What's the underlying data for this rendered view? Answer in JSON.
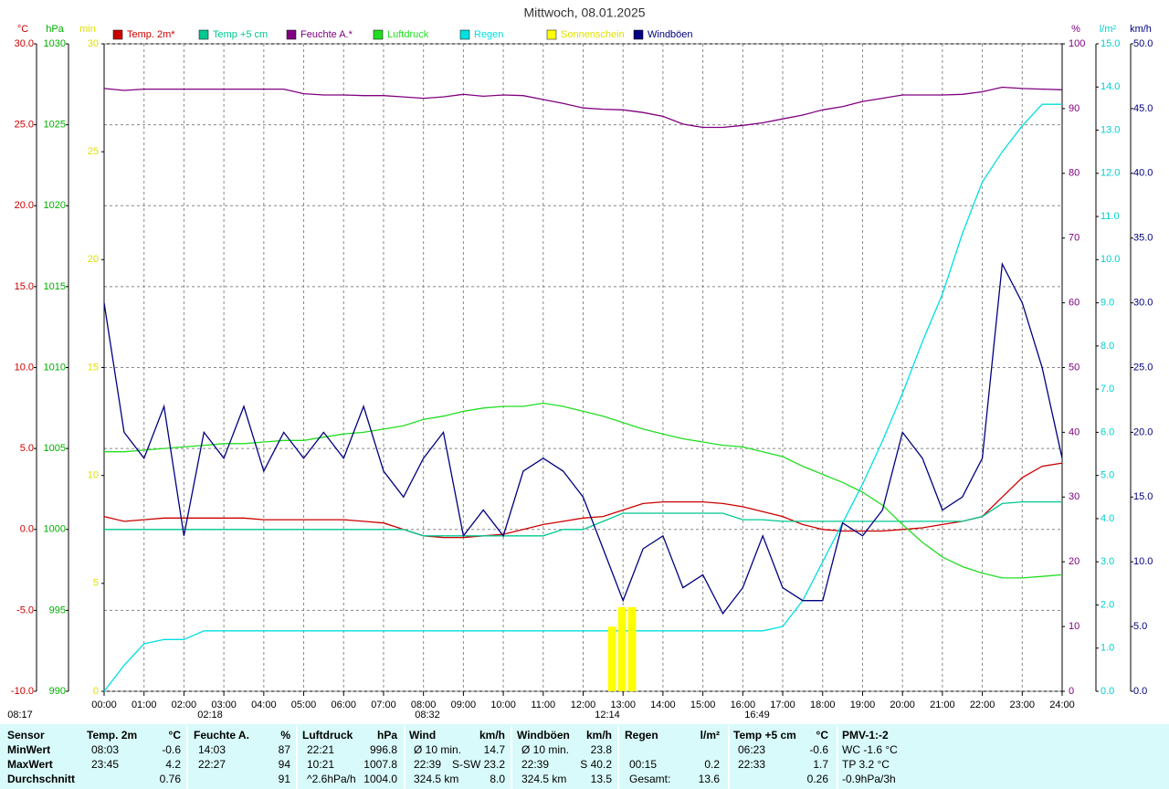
{
  "chart_data": {
    "type": "line",
    "title": "Mittwoch, 08.01.2025",
    "x": [
      0,
      0.5,
      1,
      1.5,
      2,
      2.5,
      3,
      3.5,
      4,
      4.5,
      5,
      5.5,
      6,
      6.5,
      7,
      7.5,
      8,
      8.5,
      9,
      9.5,
      10,
      10.5,
      11,
      11.5,
      12,
      12.5,
      13,
      13.5,
      14,
      14.5,
      15,
      15.5,
      16,
      16.5,
      17,
      17.5,
      18,
      18.5,
      19,
      19.5,
      20,
      20.5,
      21,
      21.5,
      22,
      22.5,
      23,
      23.5,
      24
    ],
    "xlim": [
      0,
      24
    ],
    "xticks": [
      {
        "value": 0,
        "label": "00:00"
      },
      {
        "value": 1,
        "label": "01:00"
      },
      {
        "value": 2,
        "label": "02:00"
      },
      {
        "value": 3,
        "label": "03:00"
      },
      {
        "value": 4,
        "label": "04:00"
      },
      {
        "value": 5,
        "label": "05:00"
      },
      {
        "value": 6,
        "label": "06:00"
      },
      {
        "value": 7,
        "label": "07:00"
      },
      {
        "value": 8,
        "label": "08:00"
      },
      {
        "value": 9,
        "label": "09:00"
      },
      {
        "value": 10,
        "label": "10:00"
      },
      {
        "value": 11,
        "label": "11:00"
      },
      {
        "value": 12,
        "label": "12:00"
      },
      {
        "value": 13,
        "label": "13:00"
      },
      {
        "value": 14,
        "label": "14:00"
      },
      {
        "value": 15,
        "label": "15:00"
      },
      {
        "value": 16,
        "label": "16:00"
      },
      {
        "value": 17,
        "label": "17:00"
      },
      {
        "value": 18,
        "label": "18:00"
      },
      {
        "value": 19,
        "label": "19:00"
      },
      {
        "value": 20,
        "label": "20:00"
      },
      {
        "value": 21,
        "label": "21:00"
      },
      {
        "value": 22,
        "label": "22:00"
      },
      {
        "value": 23,
        "label": "23:00"
      },
      {
        "value": 24,
        "label": "24:00"
      }
    ],
    "grid": true,
    "axes": [
      {
        "id": "temp",
        "label": "°C",
        "color": "#cc0000",
        "side": "left",
        "lim": [
          -10,
          30
        ],
        "ticks": [
          {
            "value": 30,
            "label": "30.0"
          },
          {
            "value": 25,
            "label": "25.0"
          },
          {
            "value": 20,
            "label": "20.0"
          },
          {
            "value": 15,
            "label": "15.0"
          },
          {
            "value": 10,
            "label": "10.0"
          },
          {
            "value": 5,
            "label": "5.0"
          },
          {
            "value": 0,
            "label": "0.0"
          },
          {
            "value": -5,
            "label": "-5.0"
          },
          {
            "value": -10,
            "label": "-10.0"
          }
        ]
      },
      {
        "id": "press",
        "label": "hPa",
        "color": "#00b000",
        "side": "left",
        "lim": [
          990,
          1030
        ],
        "ticks": [
          1030,
          1025,
          1020,
          1015,
          1010,
          1005,
          1000,
          995,
          990
        ]
      },
      {
        "id": "sun",
        "label": "min",
        "color": "#e0e000",
        "side": "left",
        "lim": [
          0,
          30
        ],
        "ticks": [
          30,
          25,
          20,
          15,
          10,
          5,
          0
        ]
      },
      {
        "id": "hum",
        "label": "%",
        "color": "#800080",
        "side": "right",
        "lim": [
          0,
          100
        ],
        "ticks": [
          100,
          90,
          80,
          70,
          60,
          50,
          40,
          30,
          20,
          10,
          0
        ]
      },
      {
        "id": "rain",
        "label": "l/m²",
        "color": "#00d0d0",
        "side": "right",
        "lim": [
          0,
          15
        ],
        "ticks": [
          {
            "value": 15,
            "label": "15.0"
          },
          {
            "value": 14,
            "label": "14.0"
          },
          {
            "value": 13,
            "label": "13.0"
          },
          {
            "value": 12,
            "label": "12.0"
          },
          {
            "value": 11,
            "label": "11.0"
          },
          {
            "value": 10,
            "label": "10.0"
          },
          {
            "value": 9,
            "label": "9.0"
          },
          {
            "value": 8,
            "label": "8.0"
          },
          {
            "value": 7,
            "label": "7.0"
          },
          {
            "value": 6,
            "label": "6.0"
          },
          {
            "value": 5,
            "label": "5.0"
          },
          {
            "value": 4,
            "label": "4.0"
          },
          {
            "value": 3,
            "label": "3.0"
          },
          {
            "value": 2,
            "label": "2.0"
          },
          {
            "value": 1,
            "label": "1.0"
          },
          {
            "value": 0,
            "label": "0.0"
          }
        ]
      },
      {
        "id": "wind",
        "label": "km/h",
        "color": "#000080",
        "side": "right",
        "lim": [
          0,
          50
        ],
        "ticks": [
          {
            "value": 50,
            "label": "50.0"
          },
          {
            "value": 45,
            "label": "45.0"
          },
          {
            "value": 40,
            "label": "40.0"
          },
          {
            "value": 35,
            "label": "35.0"
          },
          {
            "value": 30,
            "label": "30.0"
          },
          {
            "value": 25,
            "label": "25.0"
          },
          {
            "value": 20,
            "label": "20.0"
          },
          {
            "value": 15,
            "label": "15.0"
          },
          {
            "value": 10,
            "label": "10.0"
          },
          {
            "value": 5,
            "label": "5.0"
          },
          {
            "value": 0,
            "label": "0.0"
          }
        ]
      }
    ],
    "series": [
      {
        "name": "Temp. 2m*",
        "color": "#cc0000",
        "axis": "temp",
        "values": [
          0.8,
          0.5,
          0.6,
          0.7,
          0.7,
          0.7,
          0.7,
          0.7,
          0.6,
          0.6,
          0.6,
          0.6,
          0.6,
          0.5,
          0.4,
          0.0,
          -0.4,
          -0.5,
          -0.5,
          -0.4,
          -0.3,
          0.0,
          0.3,
          0.5,
          0.7,
          0.8,
          1.2,
          1.6,
          1.7,
          1.7,
          1.7,
          1.6,
          1.4,
          1.1,
          0.8,
          0.3,
          0.0,
          -0.1,
          -0.1,
          -0.1,
          0.0,
          0.1,
          0.3,
          0.5,
          0.8,
          2.0,
          3.2,
          3.9,
          4.1
        ]
      },
      {
        "name": "Temp +5 cm",
        "color": "#00c890",
        "axis": "temp",
        "values": [
          0.0,
          0.0,
          0.0,
          0.0,
          0.0,
          0.0,
          0.0,
          0.0,
          0.0,
          0.0,
          0.0,
          0.0,
          0.0,
          0.0,
          0.0,
          0.0,
          -0.4,
          -0.4,
          -0.4,
          -0.4,
          -0.4,
          -0.4,
          -0.4,
          0.0,
          0.0,
          0.5,
          1.0,
          1.0,
          1.0,
          1.0,
          1.0,
          1.0,
          0.6,
          0.6,
          0.5,
          0.5,
          0.5,
          0.5,
          0.5,
          0.5,
          0.5,
          0.5,
          0.5,
          0.5,
          0.8,
          1.6,
          1.7,
          1.7,
          1.7
        ]
      },
      {
        "name": "Feuchte A.*",
        "color": "#800080",
        "axis": "hum",
        "values": [
          93.1,
          92.8,
          93.0,
          93.0,
          93.0,
          93.0,
          93.0,
          93.0,
          93.0,
          93.0,
          92.3,
          92.1,
          92.1,
          92.0,
          92.0,
          91.8,
          91.6,
          91.8,
          92.2,
          91.9,
          92.1,
          92.0,
          91.4,
          90.8,
          90.1,
          89.9,
          89.8,
          89.4,
          88.8,
          87.6,
          87.1,
          87.1,
          87.4,
          87.8,
          88.4,
          89.0,
          89.8,
          90.3,
          91.1,
          91.6,
          92.1,
          92.1,
          92.1,
          92.2,
          92.6,
          93.3,
          93.1,
          93.0,
          92.9
        ]
      },
      {
        "name": "Luftdruck",
        "color": "#22dd22",
        "axis": "press",
        "values": [
          1004.8,
          1004.8,
          1004.9,
          1005.0,
          1005.1,
          1005.2,
          1005.3,
          1005.3,
          1005.4,
          1005.5,
          1005.5,
          1005.7,
          1005.9,
          1006.0,
          1006.2,
          1006.4,
          1006.8,
          1007.0,
          1007.3,
          1007.5,
          1007.6,
          1007.6,
          1007.8,
          1007.6,
          1007.3,
          1007.0,
          1006.6,
          1006.2,
          1005.9,
          1005.6,
          1005.4,
          1005.2,
          1005.1,
          1004.8,
          1004.5,
          1003.9,
          1003.4,
          1002.9,
          1002.3,
          1001.5,
          1000.3,
          999.2,
          998.3,
          997.7,
          997.3,
          997.0,
          997.0,
          997.1,
          997.2
        ]
      },
      {
        "name": "Regen",
        "color": "#00e0e0",
        "axis": "rain",
        "values": [
          0,
          0.6,
          1.1,
          1.2,
          1.2,
          1.4,
          1.4,
          1.4,
          1.4,
          1.4,
          1.4,
          1.4,
          1.4,
          1.4,
          1.4,
          1.4,
          1.4,
          1.4,
          1.4,
          1.4,
          1.4,
          1.4,
          1.4,
          1.4,
          1.4,
          1.4,
          1.4,
          1.4,
          1.4,
          1.4,
          1.4,
          1.4,
          1.4,
          1.4,
          1.5,
          2.1,
          3.0,
          3.9,
          4.8,
          5.8,
          6.9,
          8.1,
          9.2,
          10.6,
          11.8,
          12.5,
          13.1,
          13.6,
          13.6
        ]
      },
      {
        "name": "Sonnenschein",
        "color": "#ffff00",
        "axis": "sun",
        "kind": "bar",
        "x": [
          12.75,
          13.0,
          13.25
        ],
        "values": [
          3.0,
          3.9,
          3.9
        ]
      },
      {
        "name": "Windböen",
        "color": "#000080",
        "axis": "wind",
        "values": [
          30,
          20,
          18,
          22,
          12,
          20,
          18,
          22,
          17,
          20,
          18,
          20,
          18,
          22,
          17,
          15,
          18,
          20,
          12,
          14,
          12,
          17,
          18,
          17,
          15,
          11,
          7,
          11,
          12,
          8,
          9,
          6,
          8,
          12,
          8,
          7,
          7,
          13,
          12,
          14,
          20,
          18,
          14,
          15,
          18,
          33,
          30,
          25,
          18
        ]
      }
    ],
    "annotations": [
      "08:17",
      "02:18",
      "08:32",
      "12:14",
      "16:49"
    ]
  },
  "table": {
    "columns": [
      {
        "name": "Sensor"
      },
      {
        "name": "Temp. 2m",
        "unit": "°C"
      },
      {
        "name": "Feuchte A.",
        "unit": "%"
      },
      {
        "name": "Luftdruck",
        "unit": "hPa"
      },
      {
        "name": "Wind",
        "unit": "km/h"
      },
      {
        "name": "Windböen",
        "unit": "km/h"
      },
      {
        "name": "Regen",
        "unit": "l/m²"
      },
      {
        "name": "Temp +5 cm",
        "unit": "°C"
      },
      {
        "name": "PMV-1:-2"
      }
    ],
    "rows": [
      {
        "label": "MinWert",
        "cells": [
          [
            "08:03",
            "-0.6"
          ],
          [
            "14:03",
            "87"
          ],
          [
            "22:21",
            "996.8"
          ],
          [
            "Ø 10 min.",
            "14.7"
          ],
          [
            "Ø 10 min.",
            "23.8"
          ],
          null,
          [
            "06:23",
            "-0.6"
          ],
          [
            "WC -1.6 °C"
          ]
        ]
      },
      {
        "label": "MaxWert",
        "cells": [
          [
            "23:45",
            "4.2"
          ],
          [
            "22:27",
            "94"
          ],
          [
            "10:21",
            "1007.8"
          ],
          [
            "22:39",
            "S-SW 23.2"
          ],
          [
            "22:39",
            "S 40.2"
          ],
          [
            "00:15",
            "0.2"
          ],
          [
            "22:33",
            "1.7"
          ],
          [
            "TP 3.2 °C"
          ]
        ]
      },
      {
        "label": "Durchschnitt",
        "cells": [
          [
            null,
            "0.76"
          ],
          [
            null,
            "91"
          ],
          [
            "^2.6hPa/h",
            "1004.0"
          ],
          [
            "324.5 km",
            "8.0"
          ],
          [
            "324.5 km",
            "13.5"
          ],
          [
            "Gesamt:",
            "13.6"
          ],
          [
            null,
            "0.26"
          ],
          [
            "-0.9hPa/3h"
          ]
        ]
      }
    ]
  }
}
